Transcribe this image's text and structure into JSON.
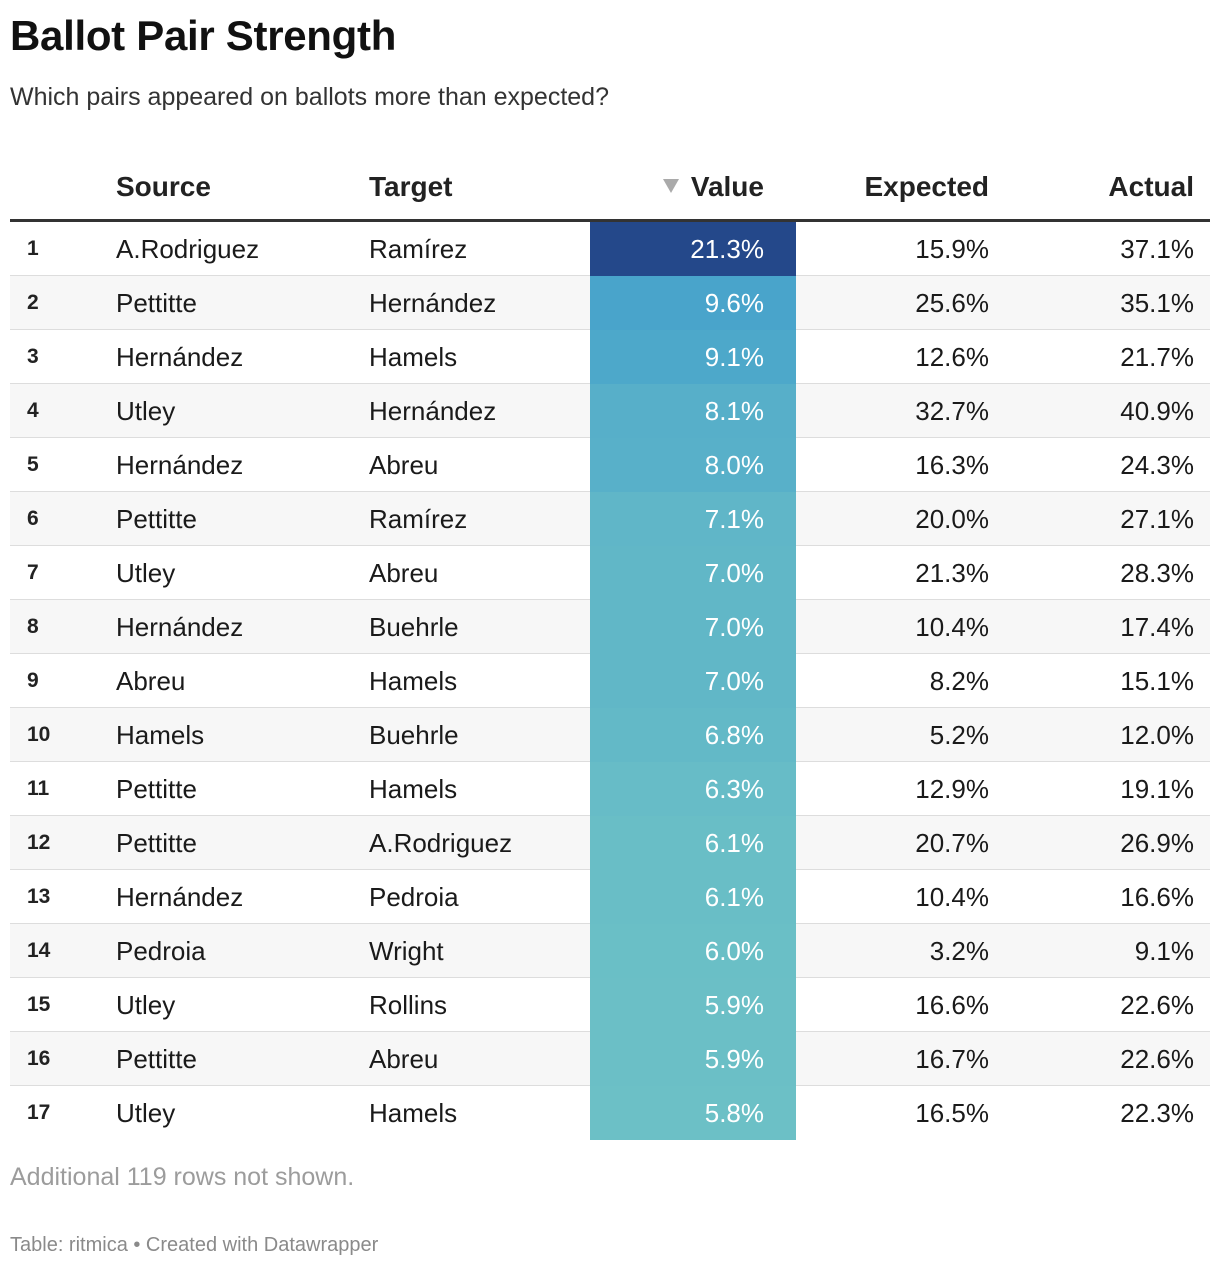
{
  "header": {
    "title": "Ballot Pair Strength",
    "subtitle": "Which pairs appeared on ballots more than expected?"
  },
  "notes": "Additional 119 rows not shown.",
  "footer": "Table: ritmica • Created with Datawrapper",
  "chart_data": {
    "type": "table",
    "title": "Ballot Pair Strength",
    "subtitle": "Which pairs appeared on ballots more than expected?",
    "columns": [
      "Source",
      "Target",
      "Value",
      "Expected",
      "Actual"
    ],
    "sort_column": "Value",
    "sort_order": "descending",
    "value_color_scale": {
      "low": "#6cc0c6",
      "mid": "#45a1cb",
      "high": "#24488a"
    },
    "rows": [
      {
        "rank": "1",
        "source": "A.Rodriguez",
        "target": "Ramírez",
        "value": "21.3%",
        "value_num": 21.3,
        "expected": "15.9%",
        "actual": "37.1%"
      },
      {
        "rank": "2",
        "source": "Pettitte",
        "target": "Hernández",
        "value": "9.6%",
        "value_num": 9.6,
        "expected": "25.6%",
        "actual": "35.1%"
      },
      {
        "rank": "3",
        "source": "Hernández",
        "target": "Hamels",
        "value": "9.1%",
        "value_num": 9.1,
        "expected": "12.6%",
        "actual": "21.7%"
      },
      {
        "rank": "4",
        "source": "Utley",
        "target": "Hernández",
        "value": "8.1%",
        "value_num": 8.1,
        "expected": "32.7%",
        "actual": "40.9%"
      },
      {
        "rank": "5",
        "source": "Hernández",
        "target": "Abreu",
        "value": "8.0%",
        "value_num": 8.0,
        "expected": "16.3%",
        "actual": "24.3%"
      },
      {
        "rank": "6",
        "source": "Pettitte",
        "target": "Ramírez",
        "value": "7.1%",
        "value_num": 7.1,
        "expected": "20.0%",
        "actual": "27.1%"
      },
      {
        "rank": "7",
        "source": "Utley",
        "target": "Abreu",
        "value": "7.0%",
        "value_num": 7.0,
        "expected": "21.3%",
        "actual": "28.3%"
      },
      {
        "rank": "8",
        "source": "Hernández",
        "target": "Buehrle",
        "value": "7.0%",
        "value_num": 7.0,
        "expected": "10.4%",
        "actual": "17.4%"
      },
      {
        "rank": "9",
        "source": "Abreu",
        "target": "Hamels",
        "value": "7.0%",
        "value_num": 7.0,
        "expected": "8.2%",
        "actual": "15.1%"
      },
      {
        "rank": "10",
        "source": "Hamels",
        "target": "Buehrle",
        "value": "6.8%",
        "value_num": 6.8,
        "expected": "5.2%",
        "actual": "12.0%"
      },
      {
        "rank": "11",
        "source": "Pettitte",
        "target": "Hamels",
        "value": "6.3%",
        "value_num": 6.3,
        "expected": "12.9%",
        "actual": "19.1%"
      },
      {
        "rank": "12",
        "source": "Pettitte",
        "target": "A.Rodriguez",
        "value": "6.1%",
        "value_num": 6.1,
        "expected": "20.7%",
        "actual": "26.9%"
      },
      {
        "rank": "13",
        "source": "Hernández",
        "target": "Pedroia",
        "value": "6.1%",
        "value_num": 6.1,
        "expected": "10.4%",
        "actual": "16.6%"
      },
      {
        "rank": "14",
        "source": "Pedroia",
        "target": "Wright",
        "value": "6.0%",
        "value_num": 6.0,
        "expected": "3.2%",
        "actual": "9.1%"
      },
      {
        "rank": "15",
        "source": "Utley",
        "target": "Rollins",
        "value": "5.9%",
        "value_num": 5.9,
        "expected": "16.6%",
        "actual": "22.6%"
      },
      {
        "rank": "16",
        "source": "Pettitte",
        "target": "Abreu",
        "value": "5.9%",
        "value_num": 5.9,
        "expected": "16.7%",
        "actual": "22.6%"
      },
      {
        "rank": "17",
        "source": "Utley",
        "target": "Hamels",
        "value": "5.8%",
        "value_num": 5.8,
        "expected": "16.5%",
        "actual": "22.3%"
      }
    ]
  }
}
